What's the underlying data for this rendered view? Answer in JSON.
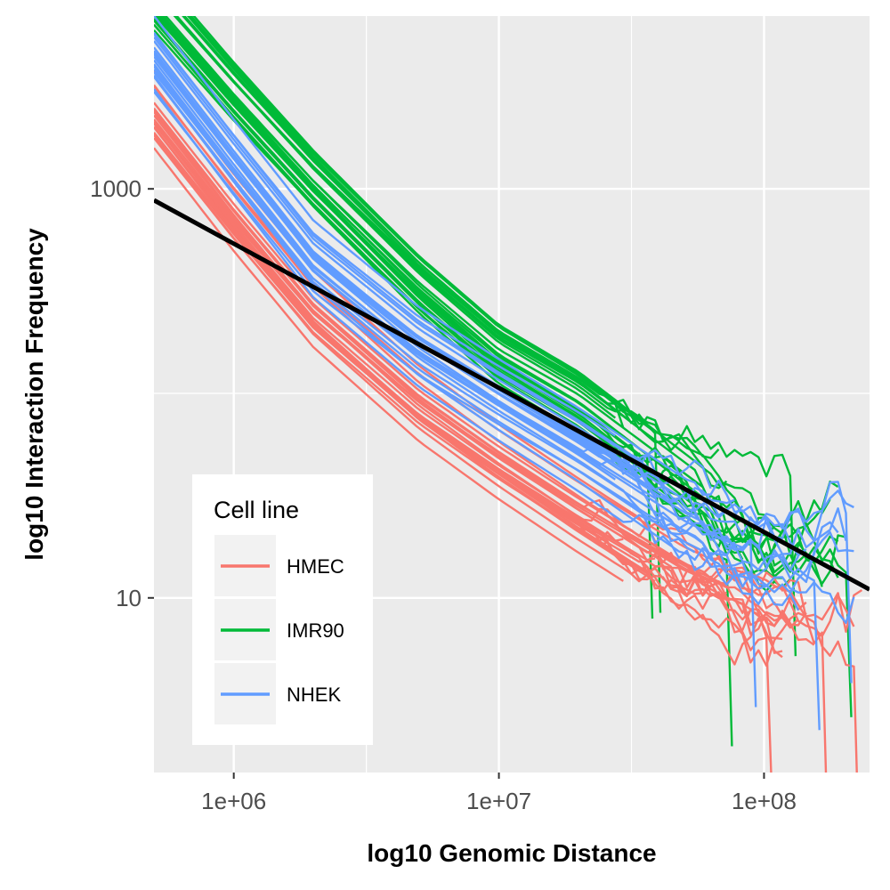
{
  "colors": {
    "HMEC": "#F8766D",
    "IMR90": "#00BA38",
    "NHEK": "#619CFF",
    "fit": "#000000"
  },
  "chart_data": {
    "type": "line",
    "title": "",
    "xlabel": "log10 Genomic Distance",
    "ylabel": "log10 Interaction Frequency",
    "x_scale": "log10",
    "y_scale": "log10",
    "xlim": [
      500000,
      250000000
    ],
    "ylim": [
      1.4,
      7000
    ],
    "x_ticks": [
      {
        "value": 1000000,
        "label": "1e+06"
      },
      {
        "value": 10000000,
        "label": "1e+07"
      },
      {
        "value": 100000000,
        "label": "1e+08"
      }
    ],
    "y_ticks": [
      {
        "value": 10,
        "label": "10"
      },
      {
        "value": 1000,
        "label": "1000"
      }
    ],
    "grid": true,
    "legend": {
      "title": "Cell line",
      "position": "bottom-left",
      "entries": [
        "HMEC",
        "IMR90",
        "NHEK"
      ]
    },
    "series": [
      {
        "name": "HMEC",
        "line_count": 23,
        "representative": {
          "x": [
            500000,
            1000000,
            2000000,
            5000000,
            10000000,
            20000000,
            50000000,
            100000000,
            200000000
          ],
          "y": [
            2200,
            700,
            240,
            85,
            45,
            25,
            12,
            8,
            7.5
          ]
        }
      },
      {
        "name": "IMR90",
        "line_count": 23,
        "representative": {
          "x": [
            500000,
            1000000,
            2000000,
            5000000,
            10000000,
            20000000,
            50000000,
            100000000,
            200000000
          ],
          "y": [
            9000,
            3200,
            1200,
            370,
            170,
            100,
            40,
            20,
            20
          ]
        }
      },
      {
        "name": "NHEK",
        "line_count": 23,
        "representative": {
          "x": [
            500000,
            1000000,
            2000000,
            5000000,
            10000000,
            20000000,
            50000000,
            100000000,
            200000000
          ],
          "y": [
            4500,
            1400,
            450,
            170,
            95,
            55,
            25,
            16,
            14
          ]
        }
      },
      {
        "name": "",
        "role": "fit-line",
        "x": [
          500000,
          250000000
        ],
        "y": [
          880,
          11
        ]
      }
    ]
  }
}
